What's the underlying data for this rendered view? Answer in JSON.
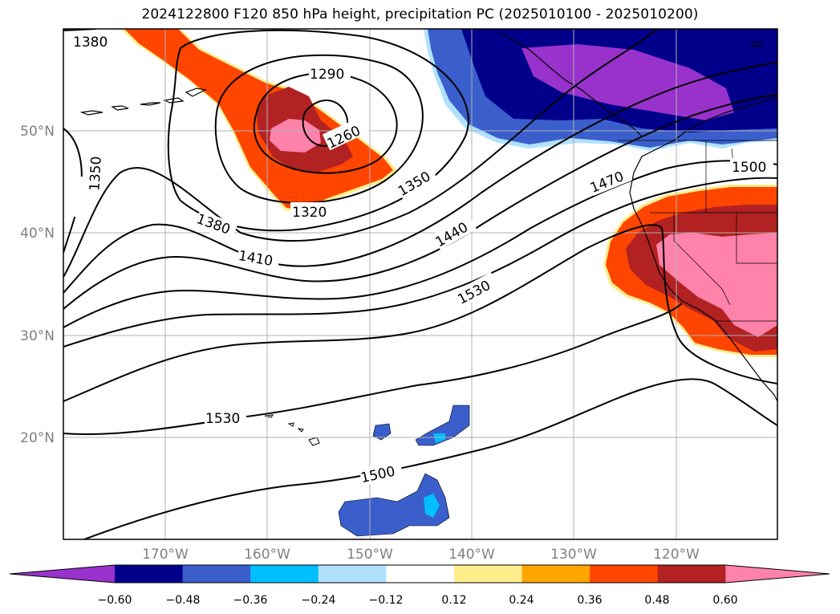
{
  "title": "2024122800 F120 850 hPa height, precipitation PC (2025010100 - 2025010200)",
  "lat_labels": [
    "50°N",
    "40°N",
    "30°N",
    "20°N"
  ],
  "lon_labels": [
    "170°W",
    "160°W",
    "150°W",
    "140°W",
    "130°W",
    "120°W"
  ],
  "contour_labels": [
    "1380",
    "1290",
    "1260",
    "1350",
    "1320",
    "1380",
    "1410",
    "1350",
    "1440",
    "1470",
    "1500",
    "1530",
    "1530",
    "1500"
  ],
  "colorbar": {
    "ticks": [
      "−0.60",
      "−0.48",
      "−0.36",
      "−0.24",
      "−0.12",
      "0.12",
      "0.24",
      "0.36",
      "0.48",
      "0.60"
    ],
    "colors": [
      "#9932cc",
      "#00008b",
      "#3a5fcd",
      "#00bfff",
      "#b0e2ff",
      "#ffffff",
      "#ffec8b",
      "#ffa500",
      "#ff4500",
      "#b22222",
      "#ff82ab"
    ]
  },
  "colors": {
    "frame": "#000000",
    "grid": "#b0b0b0",
    "axis_label": "#808080"
  }
}
